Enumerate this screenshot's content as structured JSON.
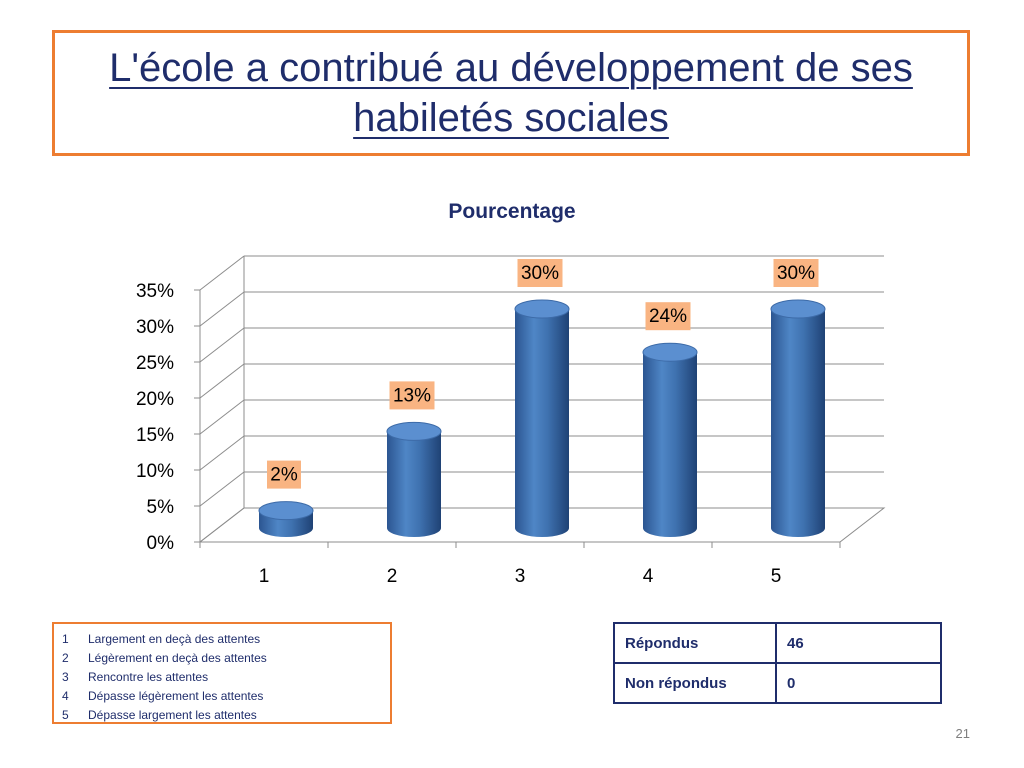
{
  "slide": {
    "title": "L'école a contribué au développement de ses habiletés sociales",
    "page_number": "21"
  },
  "chart_data": {
    "type": "bar",
    "title": "Pourcentage",
    "categories": [
      "1",
      "2",
      "3",
      "4",
      "5"
    ],
    "values": [
      2,
      13,
      30,
      24,
      30
    ],
    "data_labels": [
      "2%",
      "13%",
      "30%",
      "24%",
      "30%"
    ],
    "y_ticks": [
      "0%",
      "5%",
      "10%",
      "15%",
      "20%",
      "25%",
      "30%",
      "35%"
    ],
    "ylim": [
      0,
      35
    ],
    "xlabel": "",
    "ylabel": "",
    "grid": true,
    "style": "3d-cylinder",
    "colors": {
      "bar": "#4a7ebb",
      "label_bg": "#f9b482",
      "title": "#1f2d6b"
    }
  },
  "legend": {
    "items": [
      {
        "num": "1",
        "text": "Largement en deçà des attentes"
      },
      {
        "num": "2",
        "text": "Légèrement en deçà des attentes"
      },
      {
        "num": "3",
        "text": "Rencontre les attentes"
      },
      {
        "num": "4",
        "text": "Dépasse légèrement les attentes"
      },
      {
        "num": "5",
        "text": "Dépasse largement les attentes"
      }
    ]
  },
  "stats": {
    "rows": [
      {
        "label": "Répondus",
        "value": "46"
      },
      {
        "label": "Non répondus",
        "value": "0"
      }
    ]
  }
}
